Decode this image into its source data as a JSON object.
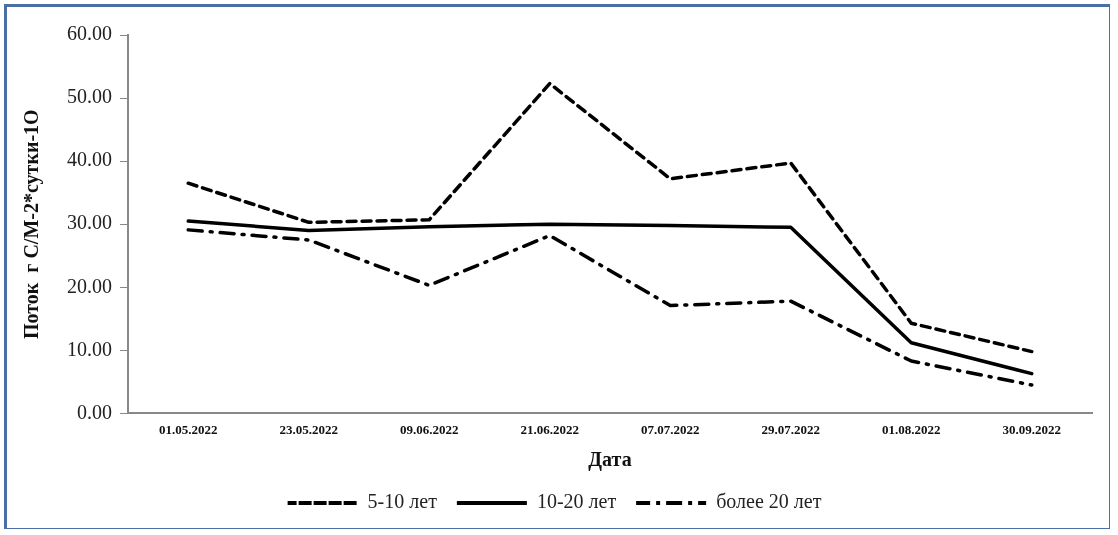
{
  "chart_data": {
    "type": "line",
    "xlabel": "Дата",
    "ylabel": "Поток  г С/М-2*сутки-1О",
    "categories": [
      "01.05.2022",
      "23.05.2022",
      "09.06.2022",
      "21.06.2022",
      "07.07.2022",
      "29.07.2022",
      "01.08.2022",
      "30.09.2022"
    ],
    "series": [
      {
        "name": "5-10 лет",
        "color": "#000000",
        "line_style": "dashed",
        "values": [
          36.5,
          30.3,
          30.7,
          52.3,
          37.2,
          39.7,
          14.3,
          9.8
        ]
      },
      {
        "name": "10-20 лет",
        "color": "#000000",
        "line_style": "solid",
        "values": [
          30.5,
          29.0,
          29.6,
          30.0,
          29.8,
          29.5,
          11.2,
          6.3
        ]
      },
      {
        "name": "более 20 лет",
        "color": "#000000",
        "line_style": "dashdot",
        "values": [
          29.1,
          27.5,
          20.3,
          28.2,
          17.1,
          17.8,
          8.3,
          4.5
        ]
      }
    ],
    "ylim": [
      0,
      60
    ],
    "yticks": [
      {
        "value": 0,
        "label": "0.00"
      },
      {
        "value": 10,
        "label": "10.00"
      },
      {
        "value": 20,
        "label": "20.00"
      },
      {
        "value": 30,
        "label": "30.00"
      },
      {
        "value": 40,
        "label": "40.00"
      },
      {
        "value": 50,
        "label": "50.00"
      },
      {
        "value": 60,
        "label": "60.00"
      }
    ],
    "grid": false,
    "legend": "bottom",
    "marker": "none"
  }
}
